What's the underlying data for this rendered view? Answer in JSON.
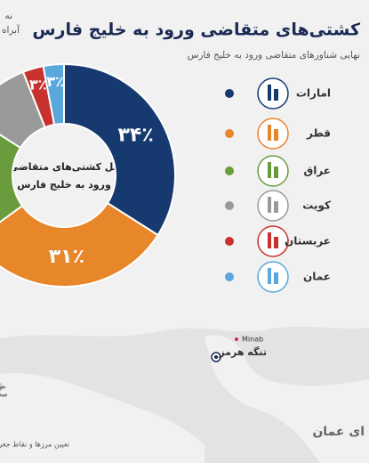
{
  "chart_data": {
    "type": "donut",
    "title": "کشتی‌های متقاضی ورود به خلیج فارس",
    "subtitle": "نهایی شناورهای متقاضی ورود به خلیج فارس",
    "corner_text": [
      "نه",
      "آبراه خ"
    ],
    "center_label": [
      "کل کشتی‌های متقاضی",
      "ورود به خلیج فارس"
    ],
    "categories": [
      "امارات",
      "قطر",
      "عراق",
      "کویت",
      "عربستان",
      "عمان"
    ],
    "values": [
      34,
      31,
      19,
      10,
      3,
      3
    ],
    "value_labels": [
      "۳۴٪",
      "۳۱٪",
      null,
      null,
      "۳٪",
      "۳٪"
    ],
    "colors": [
      "#163a70",
      "#e8862a",
      "#6a9b3c",
      "#9a9a9a",
      "#c8322e",
      "#5aa7dc"
    ],
    "map_labels": [
      "تنگه هرمز",
      "Minab",
      "ای عمان",
      "خ"
    ],
    "footnote": "تعیین مرزها و نقاط جغرافیا"
  }
}
